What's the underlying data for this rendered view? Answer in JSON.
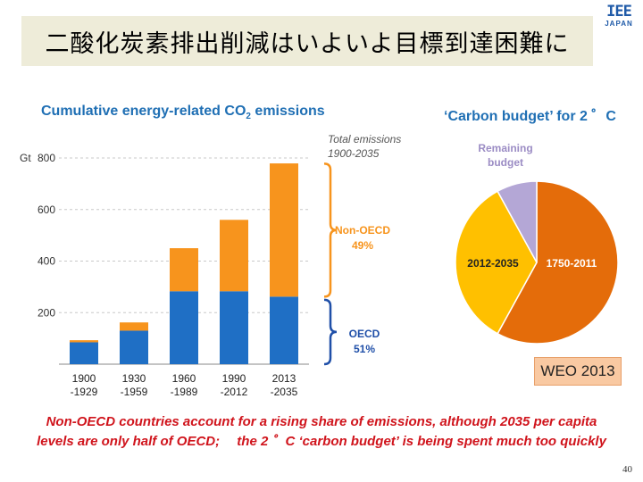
{
  "slide": {
    "title": "二酸化炭素排出削減はいよいよ目標到達困難に",
    "logo_top": "IEE",
    "logo_bottom": "JAPAN",
    "bar_chart_title_main": "Cumulative energy-related CO",
    "bar_chart_title_sub": "2",
    "bar_chart_title_tail": " emissions",
    "note_line1": "Total emissions",
    "note_line2": "1900-2035",
    "pie_chart_title": "‘Carbon budget’ for 2 ゜C",
    "badge": "WEO 2013",
    "footer_line1": "Non-OECD countries account for a rising share of emissions, although 2035 per capita",
    "footer_line2": "levels are only half of OECD;　 the 2 ゜C ‘carbon budget’ is being spent much too quickly",
    "page_number": "40"
  },
  "colors": {
    "oecd": "#1f6fc5",
    "non_oecd": "#f7941d",
    "title_blue": "#1f6fb4",
    "pie_1750": "#e46c0a",
    "pie_2012": "#ffc000",
    "pie_remaining": "#b4a7d6",
    "footer_red": "#d0141c"
  },
  "chart_data": [
    {
      "type": "bar",
      "stacked": true,
      "title": "Cumulative energy-related CO2 emissions",
      "ylabel": "Gt",
      "ylim": [
        0,
        800
      ],
      "yticks": [
        200,
        400,
        600,
        800
      ],
      "grid": true,
      "categories": [
        "1900\n-1929",
        "1930\n-1959",
        "1960\n-1989",
        "1990\n-2012",
        "2013\n-2035"
      ],
      "series": [
        {
          "name": "OECD",
          "values": [
            85,
            130,
            283,
            283,
            262
          ]
        },
        {
          "name": "Non-OECD",
          "values": [
            8,
            32,
            167,
            277,
            517
          ]
        }
      ],
      "annotations": [
        {
          "text": "Non-OECD",
          "value": "49%"
        },
        {
          "text": "OECD",
          "value": "51%"
        }
      ]
    },
    {
      "type": "pie",
      "title": "‘Carbon budget’ for 2 ゜C",
      "slices": [
        {
          "label": "1750-2011",
          "value": 58
        },
        {
          "label": "2012-2035",
          "value": 34
        },
        {
          "label": "Remaining\nbudget",
          "value": 8
        }
      ]
    }
  ]
}
